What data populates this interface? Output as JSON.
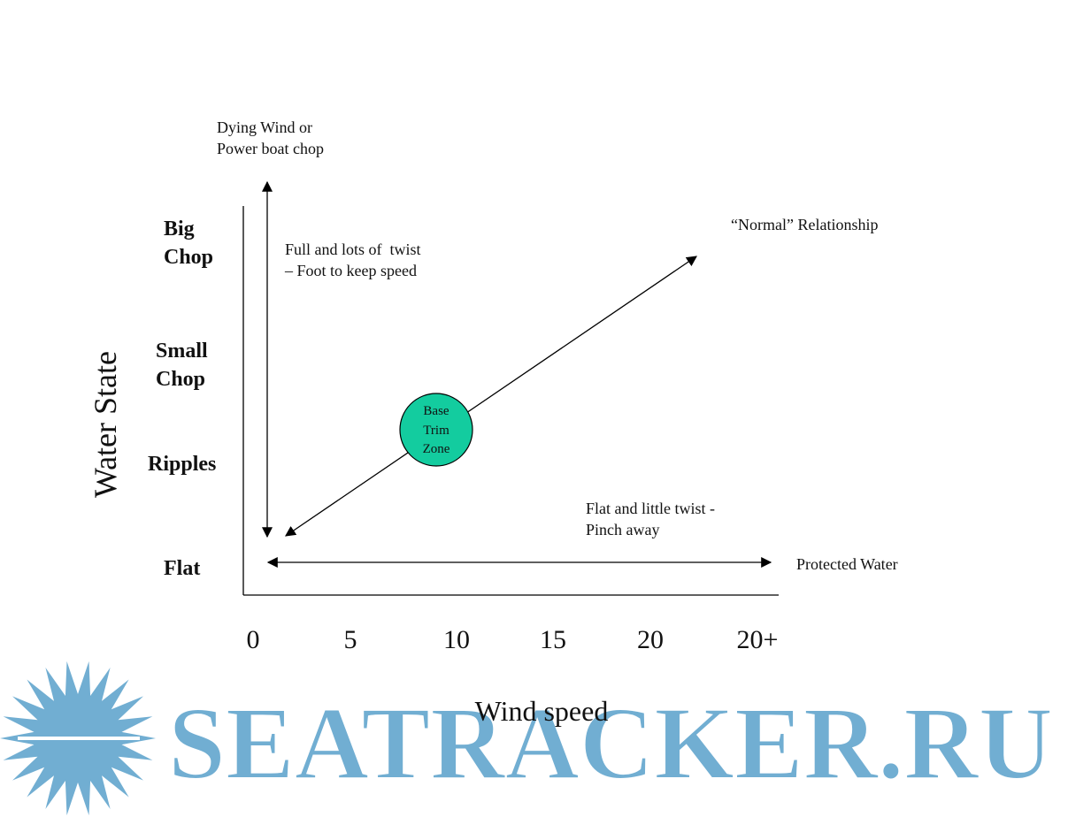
{
  "y_axis": {
    "title": "Water State",
    "levels": [
      [
        "Big",
        "Chop"
      ],
      [
        "Small",
        "Chop"
      ],
      [
        "Ripples"
      ],
      [
        "Flat"
      ]
    ]
  },
  "x_axis": {
    "title": "Wind speed",
    "labels": [
      "0",
      "5",
      "10",
      "15",
      "20",
      "20+"
    ]
  },
  "annotations": {
    "top": [
      "Dying Wind or",
      "Power boat chop"
    ],
    "vertical_arrow": [
      "Full and lots of  twist",
      "– Foot to keep speed"
    ],
    "diagonal_arrow": "“Normal” Relationship",
    "circle": [
      "Base",
      "Trim",
      "Zone"
    ],
    "flat": [
      "Flat and little twist -",
      "Pinch away"
    ],
    "horizontal_arrow": "Protected Water"
  },
  "watermark": "SEATRACKER.RU"
}
